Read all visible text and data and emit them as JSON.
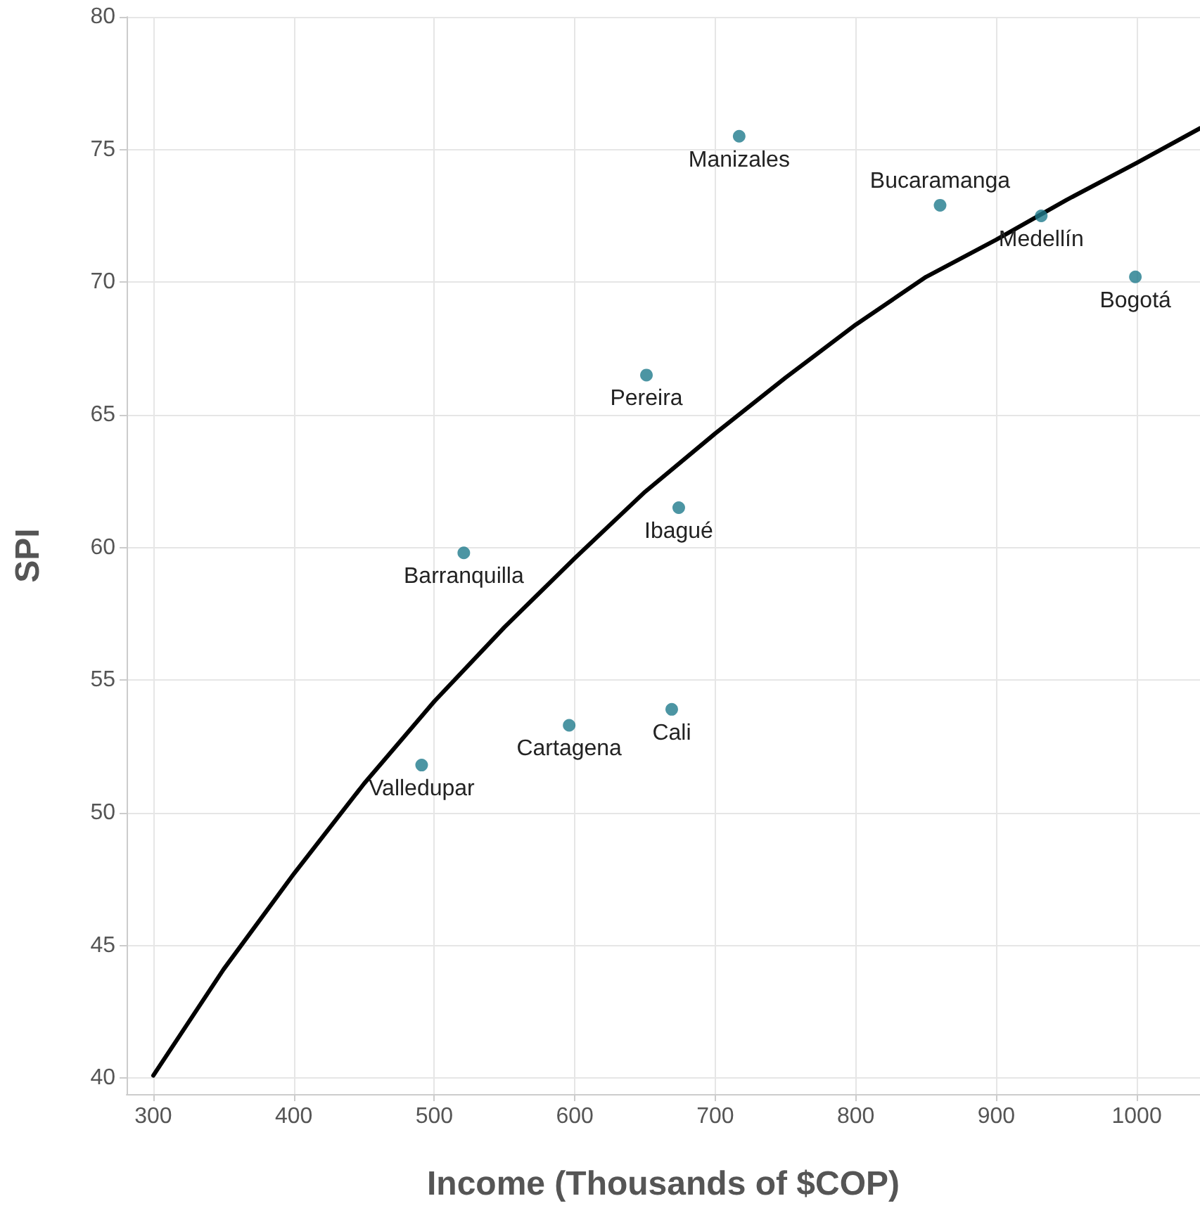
{
  "chart_data": {
    "type": "scatter",
    "xlabel": "Income (Thousands of $COP)",
    "ylabel": "SPI",
    "xlim": [
      281,
      1045
    ],
    "ylim": [
      39.4,
      80
    ],
    "xticks": [
      300,
      400,
      500,
      600,
      700,
      800,
      900,
      1000
    ],
    "yticks": [
      40,
      45,
      50,
      55,
      60,
      65,
      70,
      75,
      80
    ],
    "grid": true,
    "marker": "circle",
    "annotations": [
      {
        "text": "Manizales",
        "x": 717,
        "y": 75.5
      },
      {
        "text": "Bucaramanga",
        "x": 860,
        "y": 72.9
      },
      {
        "text": "Medellín",
        "x": 932,
        "y": 72.5
      },
      {
        "text": "Bogotá",
        "x": 999,
        "y": 70.2
      },
      {
        "text": "Pereira",
        "x": 651,
        "y": 66.5
      },
      {
        "text": "Ibagué",
        "x": 674,
        "y": 61.5
      },
      {
        "text": "Barranquilla",
        "x": 521,
        "y": 59.8
      },
      {
        "text": "Cali",
        "x": 669,
        "y": 53.9
      },
      {
        "text": "Cartagena",
        "x": 596,
        "y": 53.3
      },
      {
        "text": "Valledupar",
        "x": 491,
        "y": 51.8
      }
    ],
    "series": [
      {
        "color": "#1f7a8c",
        "x": [
          717,
          860,
          932,
          999,
          651,
          674,
          521,
          669,
          596,
          491
        ],
        "values": [
          75.5,
          72.9,
          72.5,
          70.2,
          66.5,
          61.5,
          59.8,
          53.9,
          53.3,
          51.8
        ]
      },
      {
        "type": "line",
        "color": "#000000",
        "marker": "none",
        "x": [
          300,
          350,
          400,
          450,
          500,
          550,
          600,
          650,
          700,
          750,
          800,
          850,
          900,
          950,
          1000,
          1045
        ],
        "values": [
          40.1,
          44.1,
          47.7,
          51.1,
          54.2,
          57.0,
          59.6,
          62.1,
          64.3,
          66.4,
          68.4,
          70.2,
          71.6,
          73.1,
          74.5,
          75.8
        ]
      }
    ]
  }
}
